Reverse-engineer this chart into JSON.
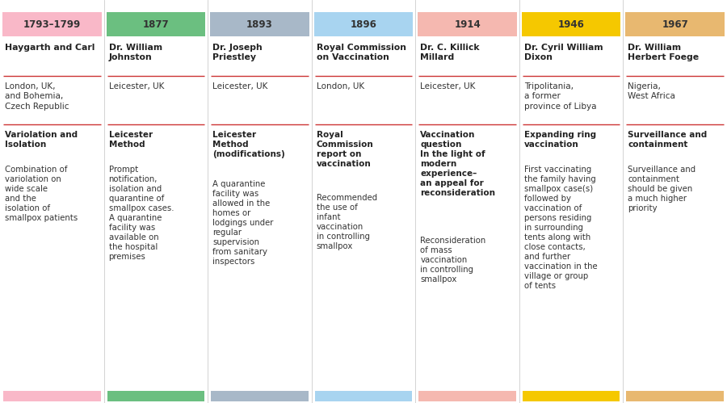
{
  "columns": [
    {
      "year": "1793–1799",
      "header_color": "#F9B8C8",
      "person": "Haygarth and Carl",
      "location": "London, UK,\nand Bohemia,\nCzech Republic",
      "concept_title": "Variolation and\nIsolation",
      "concept_body": "Combination of\nvariolation on\nwide scale\nand the\nisolation of\nsmallpox patients"
    },
    {
      "year": "1877",
      "header_color": "#6BBF80",
      "person": "Dr. William\nJohnston",
      "location": "Leicester, UK",
      "concept_title": "Leicester\nMethod",
      "concept_body": "Prompt\nnotification,\nisolation and\nquarantine of\nsmallpox cases.\nA quarantine\nfacility was\navailable on\nthe hospital\npremises"
    },
    {
      "year": "1893",
      "header_color": "#A8B8C8",
      "person": "Dr. Joseph\nPriestley",
      "location": "Leicester, UK",
      "concept_title": "Leicester\nMethod\n(modifications)",
      "concept_body": "A quarantine\nfacility was\nallowed in the\nhomes or\nlodgings under\nregular\nsupervision\nfrom sanitary\ninspectors"
    },
    {
      "year": "1896",
      "header_color": "#A8D4F0",
      "person": "Royal Commission\non Vaccination",
      "location": "London, UK",
      "concept_title": "Royal\nCommission\nreport on\nvaccination",
      "concept_body": "Recommended\nthe use of\ninfant\nvaccination\nin controlling\nsmallpox"
    },
    {
      "year": "1914",
      "header_color": "#F5B8B0",
      "person": "Dr. C. Killick\nMillard",
      "location": "Leicester, UK",
      "concept_title": "Vaccination\nquestion\nIn the light of\nmodern\nexperience–\nan appeal for\nreconsideration",
      "concept_body": "Reconsideration\nof mass\nvaccination\nin controlling\nsmallpox"
    },
    {
      "year": "1946",
      "header_color": "#F5C800",
      "person": "Dr. Cyril William\nDixon",
      "location": "Tripolitania,\na former\nprovince of Libya",
      "concept_title": "Expanding ring\nvaccination",
      "concept_body": "First vaccinating\nthe family having\nsmallpox case(s)\nfollowed by\nvaccination of\npersons residing\nin surrounding\ntents along with\nclose contacts,\nand further\nvaccination in the\nvillage or group\nof tents"
    },
    {
      "year": "1967",
      "header_color": "#E8B870",
      "person": "Dr. William\nHerbert Foege",
      "location": "Nigeria,\nWest Africa",
      "concept_title": "Surveillance and\ncontainment",
      "concept_body": "Surveillance and\ncontainment\nshould be given\na much higher\npriority"
    }
  ],
  "background_color": "#FFFFFF",
  "divider_color": "#CC3333",
  "text_color": "#222222",
  "header_text_color": "#333333",
  "figsize": [
    9.0,
    4.99
  ],
  "dpi": 100
}
